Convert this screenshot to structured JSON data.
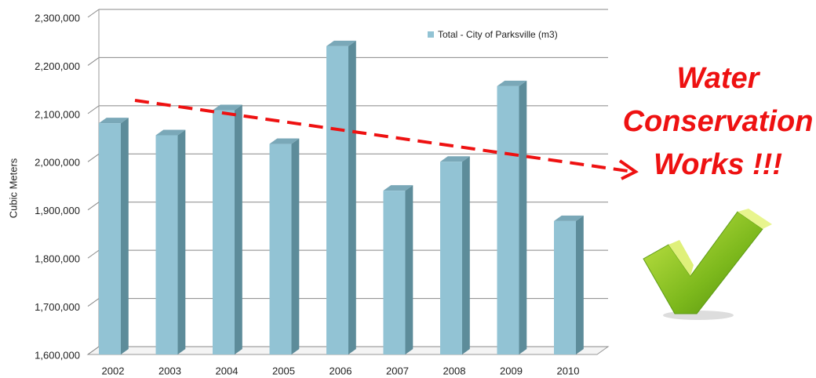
{
  "chart_data": {
    "type": "bar",
    "categories": [
      "2002",
      "2003",
      "2004",
      "2005",
      "2006",
      "2007",
      "2008",
      "2009",
      "2010"
    ],
    "series": [
      {
        "name": "Total - City of Parksville (m3)",
        "color": "#92c3d4",
        "values": [
          2080000,
          2055000,
          2107000,
          2037000,
          2240000,
          1940000,
          2000000,
          2157000,
          1877000
        ]
      }
    ],
    "ylabel": "Cubic  Meters",
    "ylim": [
      1600000,
      2300000
    ],
    "yticks": [
      {
        "value": 1600000,
        "label": "1,600,000"
      },
      {
        "value": 1700000,
        "label": "1,700,000"
      },
      {
        "value": 1800000,
        "label": "1,800,000"
      },
      {
        "value": 1900000,
        "label": "1,900,000"
      },
      {
        "value": 2000000,
        "label": "2,000,000"
      },
      {
        "value": 2100000,
        "label": "2,100,000"
      },
      {
        "value": 2200000,
        "label": "2,200,000"
      },
      {
        "value": 2300000,
        "label": "2,300,000"
      }
    ],
    "grid": true,
    "legend": "upper right",
    "annotation": [
      "Water",
      "Conservation",
      "Works !!!"
    ]
  }
}
